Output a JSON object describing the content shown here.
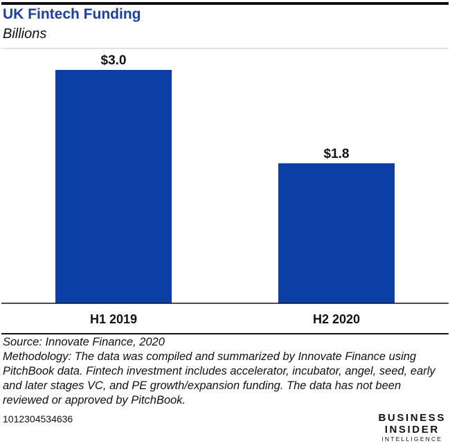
{
  "header": {
    "title": "UK Fintech Funding",
    "subtitle": "Billions"
  },
  "colors": {
    "bar": "#0b3fa6",
    "title": "#1a3fa8",
    "text": "#111111"
  },
  "chart_data": {
    "type": "bar",
    "categories": [
      "H1 2019",
      "H2 2020"
    ],
    "values": [
      3.0,
      1.8
    ],
    "value_labels": [
      "$3.0",
      "$1.8"
    ],
    "title": "UK Fintech Funding",
    "subtitle": "Billions",
    "xlabel": "",
    "ylabel": "",
    "ylim": [
      0,
      3.0
    ],
    "grid": false,
    "legend": "none"
  },
  "footer": {
    "source": "Source: Innovate Finance, 2020",
    "methodology": "Methodology: The data was compiled and summarized by Innovate Finance using PitchBook data. Fintech investment includes accelerator, incubator, angel, seed, early and later stages VC, and PE growth/expansion funding. The data has not been reviewed or approved by PitchBook.",
    "chart_id": "1012304534636"
  },
  "brand": {
    "line1": "BUSINESS",
    "line2": "INSIDER",
    "line3": "INTELLIGENCE"
  }
}
